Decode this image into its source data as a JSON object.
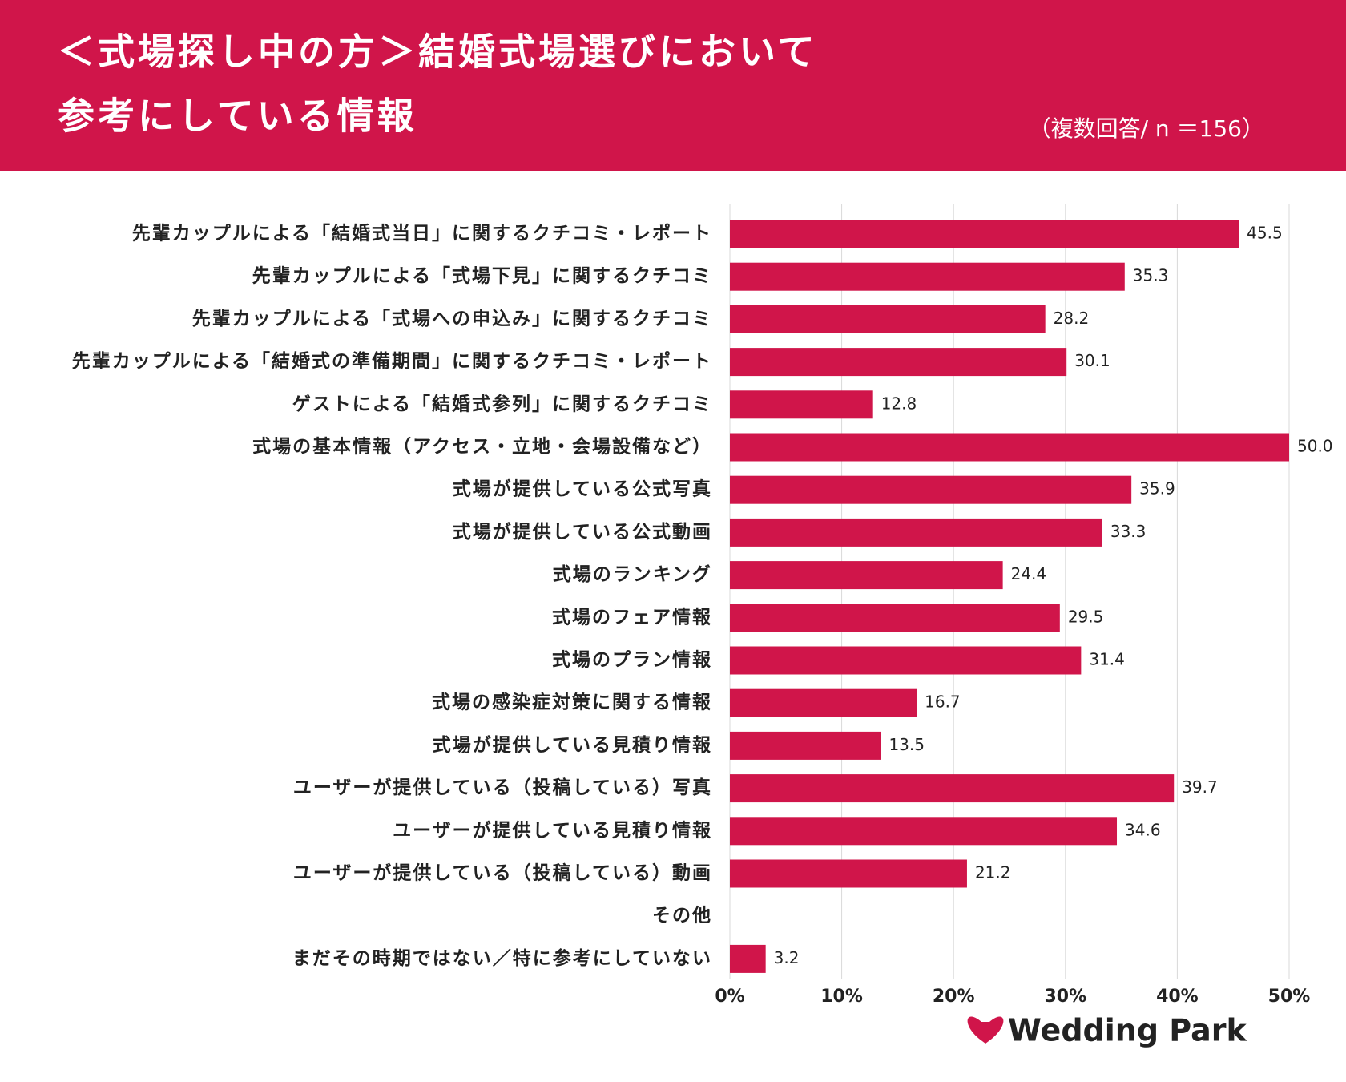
{
  "header": {
    "title_line1": "＜式場探し中の方＞結婚式場選びにおいて",
    "title_line2": "参考にしている情報",
    "note": "（複数回答/ n ＝156）"
  },
  "logo": "Wedding Park",
  "chart_data": {
    "type": "bar",
    "orientation": "horizontal",
    "color": "#d0154a",
    "categories": [
      "先輩カップルによる「結婚式当日」に関するクチコミ・レポート",
      "先輩カップルによる「式場下見」に関するクチコミ",
      "先輩カップルによる「式場への申込み」に関するクチコミ",
      "先輩カップルによる「結婚式の準備期間」に関するクチコミ・レポート",
      "ゲストによる「結婚式参列」に関するクチコミ",
      "式場の基本情報（アクセス・立地・会場設備など）",
      "式場が提供している公式写真",
      "式場が提供している公式動画",
      "式場のランキング",
      "式場のフェア情報",
      "式場のプラン情報",
      "式場の感染症対策に関する情報",
      "式場が提供している見積り情報",
      "ユーザーが提供している（投稿している）写真",
      "ユーザーが提供している見積り情報",
      "ユーザーが提供している（投稿している）動画",
      "その他",
      "まだその時期ではない／特に参考にしていない"
    ],
    "values": [
      45.5,
      35.3,
      28.2,
      30.1,
      12.8,
      50.0,
      35.9,
      33.3,
      24.4,
      29.5,
      31.4,
      16.7,
      13.5,
      39.7,
      34.6,
      21.2,
      null,
      3.2
    ],
    "value_labels": [
      "45.5",
      "35.3",
      "28.2",
      "30.1",
      "12.8",
      "50.0",
      "35.9",
      "33.3",
      "24.4",
      "29.5",
      "31.4",
      "16.7",
      "13.5",
      "39.7",
      "34.6",
      "21.2",
      null,
      "3.2"
    ],
    "xlim": [
      0,
      50
    ],
    "xticks": [
      {
        "value": 0,
        "label": "0%"
      },
      {
        "value": 10,
        "label": "10%"
      },
      {
        "value": 20,
        "label": "20%"
      },
      {
        "value": 30,
        "label": "30%"
      },
      {
        "value": 40,
        "label": "40%"
      },
      {
        "value": 50,
        "label": "50%"
      }
    ],
    "grid": true
  }
}
